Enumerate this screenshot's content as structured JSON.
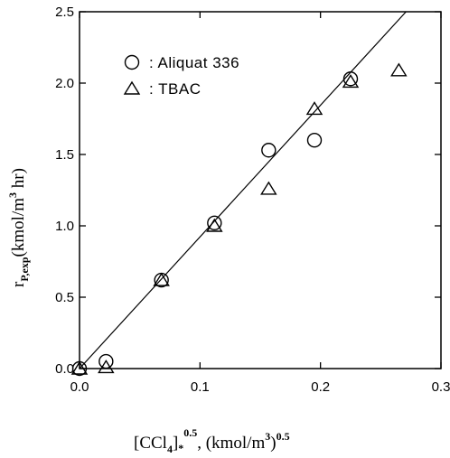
{
  "chart_data": {
    "type": "scatter",
    "xlim": [
      0,
      0.3
    ],
    "ylim": [
      0,
      2.5
    ],
    "x_ticks": [
      0.0,
      0.1,
      0.2,
      0.3
    ],
    "y_ticks": [
      0.0,
      0.5,
      1.0,
      1.5,
      2.0,
      2.5
    ],
    "x_tick_labels": [
      "0.0",
      "0.1",
      "0.2",
      "0.3"
    ],
    "y_tick_labels": [
      "0.0",
      "0.5",
      "1.0",
      "1.5",
      "2.0",
      "2.5"
    ],
    "xlabel": {
      "prefix": "[CCl",
      "sub1": "4",
      "mid1": "]",
      "sub2": "*",
      "sup1": "0.5",
      "mid2": ", (kmol/m",
      "sup2": "3",
      "mid3": ")",
      "sup3": "0.5"
    },
    "ylabel": {
      "prefix": "r",
      "sub": "P,exp",
      "mid": "(kmol/m",
      "sup": "3",
      "suffix": " hr)"
    },
    "legend_position": "top-left",
    "grid": false,
    "series": [
      {
        "name": ": Aliquat 336",
        "marker": "circle",
        "x": [
          0.0,
          0.022,
          0.068,
          0.112,
          0.157,
          0.195,
          0.225
        ],
        "y": [
          0.0,
          0.05,
          0.62,
          1.02,
          1.53,
          1.6,
          2.03
        ]
      },
      {
        "name": ": TBAC",
        "marker": "triangle",
        "x": [
          0.0,
          0.022,
          0.068,
          0.112,
          0.157,
          0.195,
          0.225,
          0.265
        ],
        "y": [
          0.0,
          0.01,
          0.62,
          1.0,
          1.26,
          1.82,
          2.01,
          2.09
        ]
      }
    ],
    "fit_line": {
      "x": [
        0.0,
        0.271
      ],
      "y": [
        0.0,
        2.5
      ]
    }
  }
}
